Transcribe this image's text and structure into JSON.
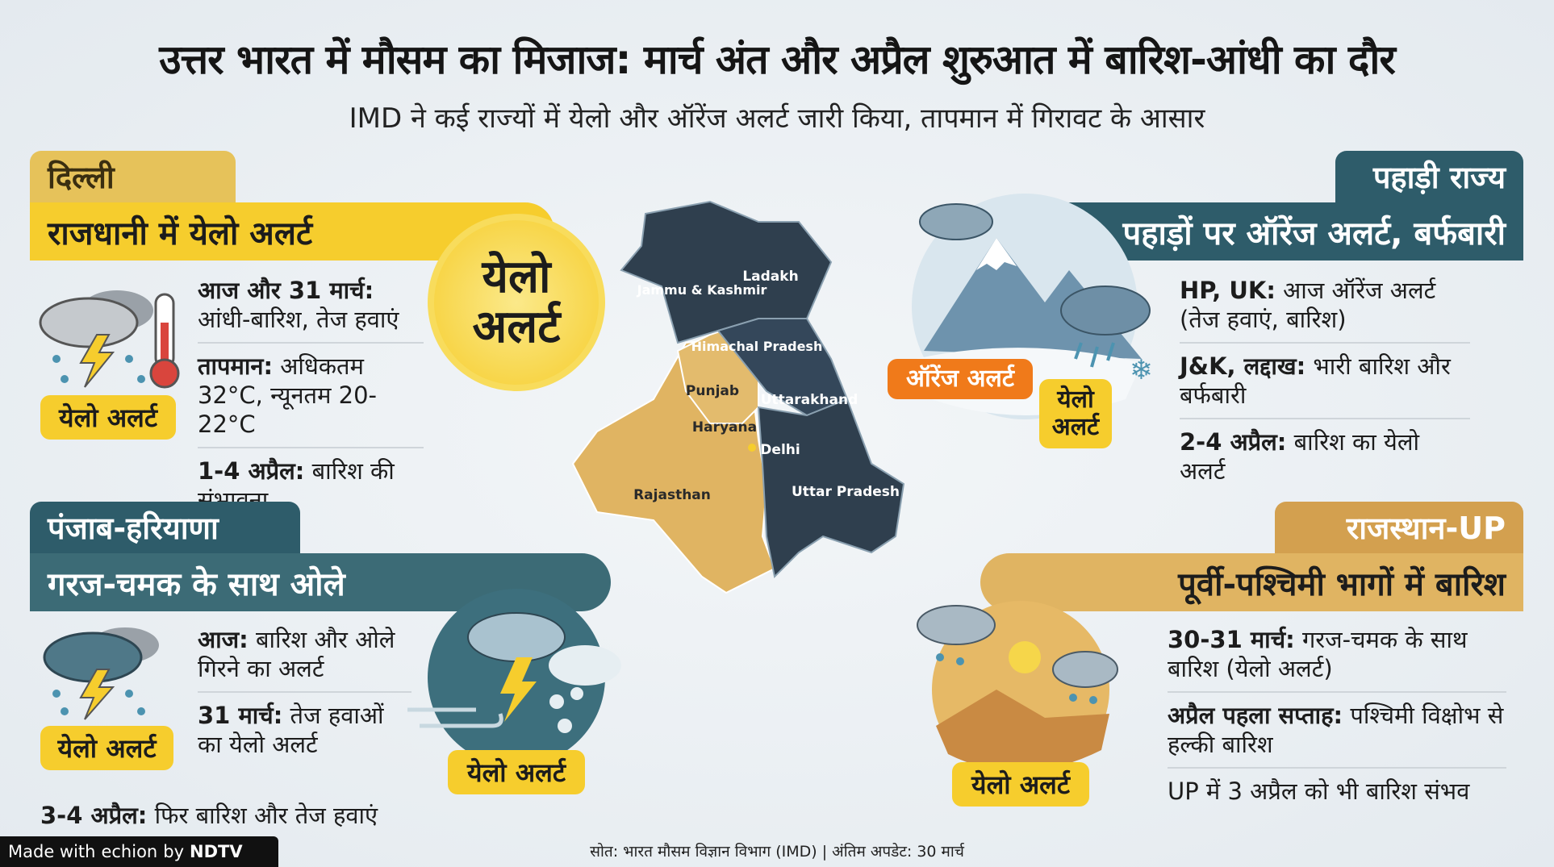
{
  "title": "उत्तर भारत में मौसम का मिजाज: मार्च अंत और अप्रैल शुरुआत में बारिश-आंधी का दौर",
  "subtitle": "IMD ने कई राज्यों में येलो और ऑरेंज अलर्ट जारी किया, तापमान में गिरावट के आसार",
  "colors": {
    "yellow": "#f6cd2d",
    "orange": "#f07a1a",
    "teal": "#2e5c6a",
    "tan": "#d9a85a",
    "map_dark": "#2f3f4e",
    "map_tan": "#e0b462"
  },
  "delhi": {
    "tag": "दिल्ली",
    "header": "राजधानी में येलो अलर्ट",
    "badge": "येलो अलर्ट",
    "big_badge_line1": "येलो",
    "big_badge_line2": "अलर्ट",
    "items": [
      {
        "bold": "आज और 31 मार्च:",
        "text": "आंधी-बारिश, तेज हवाएं"
      },
      {
        "bold": "तापमान:",
        "text": "अधिकतम 32°C, न्यूनतम 20-22°C"
      },
      {
        "bold": "1-4 अप्रैल:",
        "text": "बारिश की संभावना"
      }
    ],
    "icons": [
      "storm-cloud-icon",
      "thermometer-icon"
    ]
  },
  "hills": {
    "tag": "पहाड़ी राज्य",
    "header": "पहाड़ों पर ऑरेंज अलर्ट, बर्फबारी",
    "orange_badge": "ऑरेंज अलर्ट",
    "yellow_badge_line1": "येलो",
    "yellow_badge_line2": "अलर्ट",
    "items": [
      {
        "bold": "HP, UK:",
        "text": "आज ऑरेंज अलर्ट (तेज हवाएं, बारिश)"
      },
      {
        "bold": "J&K, लद्दाख:",
        "text": "भारी बारिश और बर्फबारी"
      },
      {
        "bold": "2-4 अप्रैल:",
        "text": "बारिश का येलो अलर्ट"
      }
    ],
    "icons": [
      "snowy-mountain-icon",
      "snowflake-icon"
    ]
  },
  "punjab": {
    "tag": "पंजाब-हरियाणा",
    "header": "गरज-चमक के साथ ओले",
    "badge": "येलो अलर्ट",
    "circle_badge": "येलो अलर्ट",
    "items": [
      {
        "bold": "आज:",
        "text": "बारिश और ओले गिरने का अलर्ट"
      },
      {
        "bold": "31 मार्च:",
        "text": "तेज हवाओं का येलो अलर्ट"
      }
    ],
    "extra": {
      "bold": "3-4 अप्रैल:",
      "text": "फिर बारिश और तेज हवाएं"
    },
    "icons": [
      "hail-storm-icon",
      "wind-icon"
    ]
  },
  "rajasthan": {
    "tag": "राजस्थान-UP",
    "header": "पूर्वी-पश्चिमी भागों में बारिश",
    "badge": "येलो अलर्ट",
    "items": [
      {
        "bold": "30-31 मार्च:",
        "text": "गरज-चमक के साथ बारिश (येलो अलर्ट)"
      },
      {
        "bold": "अप्रैल पहला सप्ताह:",
        "text": "पश्चिमी विक्षोभ से हल्की बारिश"
      },
      {
        "bold": "",
        "text": "UP में 3 अप्रैल को भी बारिश संभव"
      }
    ],
    "icons": [
      "desert-rain-icon"
    ]
  },
  "map": {
    "labels": [
      "Ladakh",
      "Jammu & Kashmir",
      "Himachal Pradesh",
      "Punjab",
      "Uttarakhand",
      "Haryana",
      "Delhi",
      "Rajasthan",
      "Uttar Pradesh"
    ]
  },
  "footer": {
    "source": "सोत: भारत मौसम विज्ञान विभाग (IMD) | अंतिम अपडेट: 30 मार्च",
    "made_with": "Made with",
    "brand": "echion",
    "by": "by",
    "ndtv": "NDTV"
  }
}
